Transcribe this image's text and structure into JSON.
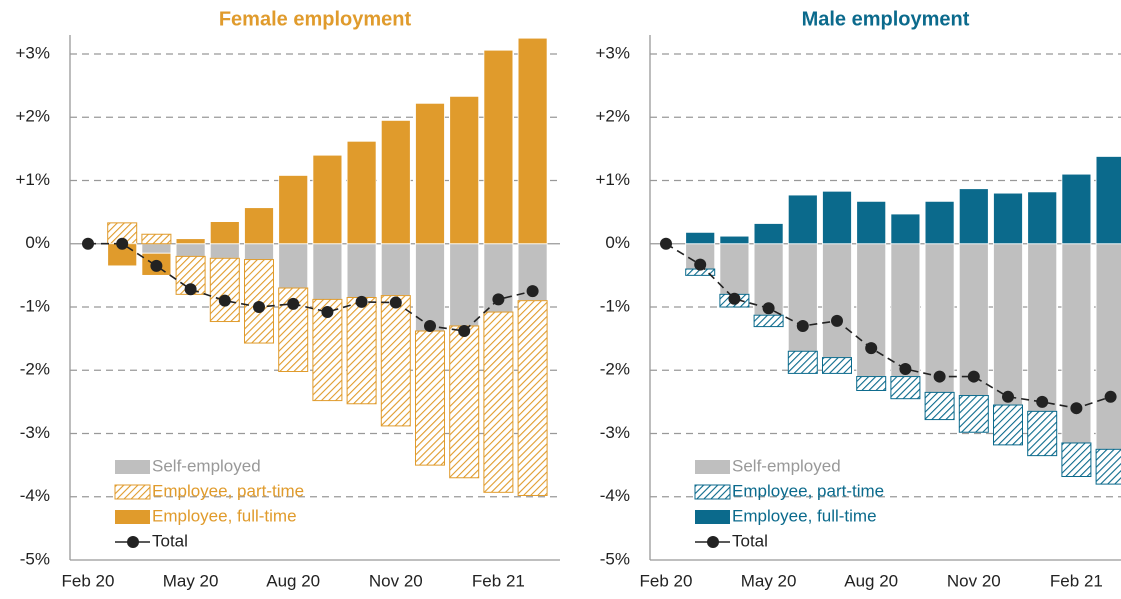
{
  "chart_data": [
    {
      "type": "bar",
      "title": "Female employment",
      "title_color": "#E09B2C",
      "categories": [
        "Feb 20",
        null,
        null,
        "May 20",
        null,
        null,
        "Aug 20",
        null,
        null,
        "Nov 20",
        null,
        null,
        "Feb 21",
        null
      ],
      "ylim": [
        -5,
        3.3
      ],
      "yticks": [
        {
          "value": 3,
          "label": "+3%"
        },
        {
          "value": 2,
          "label": "+2%"
        },
        {
          "value": 1,
          "label": "+1%"
        },
        {
          "value": 0,
          "label": "0%"
        },
        {
          "value": -1,
          "label": "-1%"
        },
        {
          "value": -2,
          "label": "-2%"
        },
        {
          "value": -3,
          "label": "-3%"
        },
        {
          "value": -4,
          "label": "-4%"
        },
        {
          "value": -5,
          "label": "-5%"
        }
      ],
      "grid": true,
      "series": [
        {
          "name": "Self-employed",
          "color": "#BFBFBF",
          "values": [
            null,
            0,
            -0.15,
            -0.2,
            -0.23,
            -0.25,
            -0.7,
            -0.88,
            -0.85,
            -0.82,
            -1.38,
            -1.3,
            -1.08,
            -0.9
          ]
        },
        {
          "name": "Employee, part-time",
          "color": "#E09B2C",
          "hatch": true,
          "values": [
            null,
            0.33,
            0.15,
            -0.6,
            -1.0,
            -1.32,
            -1.32,
            -1.6,
            -1.68,
            -2.06,
            -2.12,
            -2.4,
            -2.85,
            -3.08
          ]
        },
        {
          "name": "Employee, full-time",
          "color": "#E09B2C",
          "values": [
            null,
            -0.35,
            -0.35,
            0.08,
            0.35,
            0.57,
            1.08,
            1.4,
            1.62,
            1.95,
            2.22,
            2.33,
            3.06,
            3.25
          ]
        },
        {
          "name": "Total",
          "color": "#222222",
          "type": "line",
          "values": [
            0,
            0,
            -0.35,
            -0.72,
            -0.9,
            -1.0,
            -0.95,
            -1.08,
            -0.92,
            -0.93,
            -1.3,
            -1.38,
            -0.88,
            -0.75
          ]
        }
      ]
    },
    {
      "type": "bar",
      "title": "Male employment",
      "title_color": "#0B6A8C",
      "categories": [
        "Feb 20",
        null,
        null,
        "May 20",
        null,
        null,
        "Aug 20",
        null,
        null,
        "Nov 20",
        null,
        null,
        "Feb 21",
        null
      ],
      "ylim": [
        -5,
        3.3
      ],
      "yticks": [
        {
          "value": 3,
          "label": "+3%"
        },
        {
          "value": 2,
          "label": "+2%"
        },
        {
          "value": 1,
          "label": "+1%"
        },
        {
          "value": 0,
          "label": "0%"
        },
        {
          "value": -1,
          "label": "-1%"
        },
        {
          "value": -2,
          "label": "-2%"
        },
        {
          "value": -3,
          "label": "-3%"
        },
        {
          "value": -4,
          "label": "-4%"
        },
        {
          "value": -5,
          "label": "-5%"
        }
      ],
      "grid": true,
      "series": [
        {
          "name": "Self-employed",
          "color": "#BFBFBF",
          "values": [
            null,
            -0.4,
            -0.8,
            -1.13,
            -1.7,
            -1.8,
            -2.1,
            -2.1,
            -2.35,
            -2.4,
            -2.55,
            -2.65,
            -3.15,
            -3.25
          ]
        },
        {
          "name": "Employee, part-time",
          "color": "#0B6A8C",
          "hatch": true,
          "values": [
            null,
            -0.1,
            -0.2,
            -0.18,
            -0.35,
            -0.25,
            -0.22,
            -0.35,
            -0.43,
            -0.58,
            -0.63,
            -0.7,
            -0.53,
            -0.55
          ]
        },
        {
          "name": "Employee, full-time",
          "color": "#0B6A8C",
          "values": [
            null,
            0.18,
            0.12,
            0.32,
            0.77,
            0.83,
            0.67,
            0.47,
            0.67,
            0.87,
            0.8,
            0.82,
            1.1,
            1.38
          ]
        },
        {
          "name": "Total",
          "color": "#222222",
          "type": "line",
          "values": [
            0,
            -0.33,
            -0.87,
            -1.02,
            -1.3,
            -1.22,
            -1.65,
            -1.98,
            -2.1,
            -2.1,
            -2.42,
            -2.5,
            -2.6,
            -2.42
          ]
        }
      ]
    }
  ]
}
